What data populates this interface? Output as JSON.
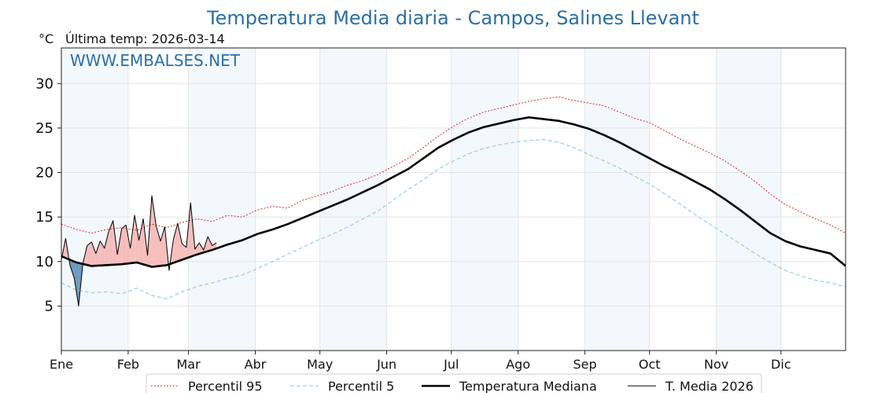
{
  "chart_data": {
    "type": "line",
    "title": "Temperatura Media diaria - Campos, Salines Llevant",
    "subtitle": "Última temp: 2026-03-14",
    "ylabel_unit": "°C",
    "watermark": "WWW.EMBALSES.NET",
    "ylim": [
      0,
      34
    ],
    "yticks": [
      5,
      10,
      15,
      20,
      25,
      30
    ],
    "months": [
      "Ene",
      "Feb",
      "Mar",
      "Abr",
      "May",
      "Jun",
      "Jul",
      "Ago",
      "Sep",
      "Oct",
      "Nov",
      "Dic"
    ],
    "month_start_days": [
      1,
      32,
      60,
      91,
      121,
      152,
      182,
      213,
      244,
      274,
      305,
      335
    ],
    "x_range_days": [
      1,
      365
    ],
    "grid": true,
    "legend_position": "bottom",
    "series": [
      {
        "name": "Percentil 95",
        "color": "#e0241c",
        "style": "dotted",
        "x": [
          1,
          8,
          15,
          22,
          29,
          36,
          43,
          50,
          57,
          64,
          71,
          78,
          85,
          92,
          99,
          106,
          113,
          120,
          127,
          134,
          141,
          148,
          155,
          162,
          169,
          176,
          183,
          190,
          197,
          204,
          211,
          218,
          225,
          232,
          239,
          246,
          253,
          260,
          267,
          274,
          281,
          288,
          295,
          302,
          309,
          316,
          323,
          330,
          337,
          344,
          351,
          358,
          365
        ],
        "values": [
          14.2,
          13.6,
          13.2,
          13.6,
          13.8,
          13.5,
          14.2,
          13.8,
          14.4,
          14.8,
          14.5,
          15.2,
          15.0,
          15.8,
          16.2,
          16.0,
          16.9,
          17.4,
          17.9,
          18.6,
          19.1,
          19.8,
          20.7,
          21.6,
          22.8,
          24.1,
          25.2,
          26.1,
          26.8,
          27.2,
          27.6,
          28.0,
          28.3,
          28.5,
          28.1,
          27.8,
          27.5,
          26.8,
          26.1,
          25.6,
          24.7,
          23.8,
          23.0,
          22.2,
          21.3,
          20.2,
          19.0,
          17.6,
          16.4,
          15.6,
          14.8,
          14.1,
          13.2
        ]
      },
      {
        "name": "Percentil 5",
        "color": "#9fd0e0",
        "style": "dashed",
        "x": [
          1,
          8,
          15,
          22,
          29,
          36,
          43,
          50,
          57,
          64,
          71,
          78,
          85,
          92,
          99,
          106,
          113,
          120,
          127,
          134,
          141,
          148,
          155,
          162,
          169,
          176,
          183,
          190,
          197,
          204,
          211,
          218,
          225,
          232,
          239,
          246,
          253,
          260,
          267,
          274,
          281,
          288,
          295,
          302,
          309,
          316,
          323,
          330,
          337,
          344,
          351,
          358,
          365
        ],
        "values": [
          7.6,
          6.8,
          6.5,
          6.6,
          6.4,
          7.0,
          6.2,
          5.8,
          6.6,
          7.2,
          7.6,
          8.1,
          8.5,
          9.2,
          10.0,
          10.8,
          11.6,
          12.4,
          13.1,
          13.9,
          14.8,
          15.7,
          16.9,
          18.1,
          19.2,
          20.4,
          21.3,
          22.1,
          22.7,
          23.1,
          23.4,
          23.6,
          23.7,
          23.4,
          22.8,
          22.0,
          21.3,
          20.5,
          19.6,
          18.7,
          17.6,
          16.5,
          15.3,
          14.2,
          13.1,
          12.0,
          10.9,
          9.9,
          9.0,
          8.4,
          7.9,
          7.6,
          7.2
        ]
      },
      {
        "name": "Temperatura Mediana",
        "color": "#000000",
        "style": "solid-thick",
        "x": [
          1,
          8,
          15,
          22,
          29,
          36,
          43,
          50,
          57,
          64,
          71,
          78,
          85,
          92,
          99,
          106,
          113,
          120,
          127,
          134,
          141,
          148,
          155,
          162,
          169,
          176,
          183,
          190,
          197,
          204,
          211,
          218,
          225,
          232,
          239,
          246,
          253,
          260,
          267,
          274,
          281,
          288,
          295,
          302,
          309,
          316,
          323,
          330,
          337,
          344,
          351,
          358,
          365
        ],
        "values": [
          10.6,
          9.9,
          9.5,
          9.6,
          9.7,
          9.9,
          9.4,
          9.6,
          10.2,
          10.8,
          11.3,
          11.9,
          12.4,
          13.1,
          13.6,
          14.2,
          14.9,
          15.6,
          16.3,
          17.0,
          17.8,
          18.6,
          19.5,
          20.4,
          21.6,
          22.8,
          23.7,
          24.5,
          25.1,
          25.5,
          25.9,
          26.2,
          26.0,
          25.8,
          25.4,
          24.9,
          24.2,
          23.4,
          22.5,
          21.6,
          20.7,
          19.9,
          19.0,
          18.1,
          17.0,
          15.8,
          14.5,
          13.2,
          12.3,
          11.7,
          11.3,
          10.9,
          9.5
        ]
      },
      {
        "name": "T. Media 2026",
        "color": "#000000",
        "style": "solid-thin",
        "x": [
          1,
          3,
          5,
          7,
          9,
          11,
          13,
          15,
          17,
          19,
          21,
          23,
          25,
          27,
          29,
          31,
          33,
          35,
          37,
          39,
          41,
          43,
          45,
          47,
          49,
          51,
          53,
          55,
          57,
          59,
          61,
          63,
          65,
          67,
          69,
          71,
          73
        ],
        "values": [
          10.2,
          12.6,
          9.6,
          8.1,
          5.0,
          9.8,
          11.8,
          12.2,
          10.9,
          12.3,
          11.5,
          13.4,
          14.6,
          10.8,
          13.7,
          14.1,
          11.5,
          15.2,
          12.4,
          14.8,
          10.7,
          17.4,
          14.0,
          12.3,
          13.9,
          9.0,
          12.5,
          14.3,
          12.0,
          11.6,
          16.6,
          11.4,
          12.1,
          11.3,
          12.8,
          11.8,
          12.1
        ]
      }
    ]
  }
}
